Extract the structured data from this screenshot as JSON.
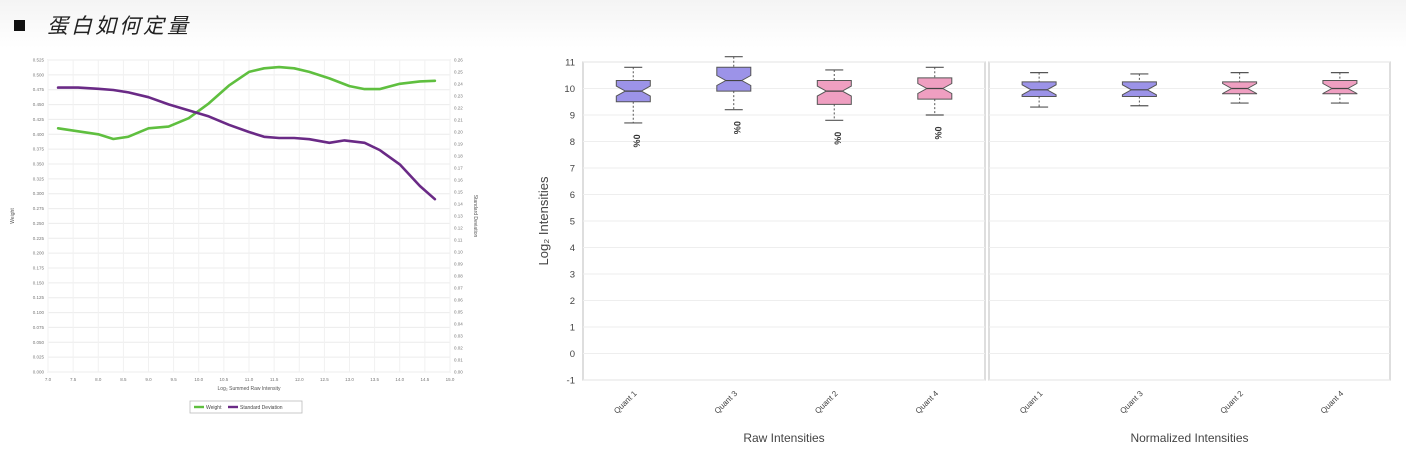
{
  "header": {
    "bullet_icon": "square-bullet-icon",
    "title": "蛋白如何定量"
  },
  "chart_data": [
    {
      "type": "line",
      "title": "",
      "xlabel": "Log₂ Summed Raw Intensity",
      "ylabel": "Weight",
      "y2label": "Standard Deviation",
      "xlim": [
        7.0,
        15.0
      ],
      "xticks": [
        "7.0",
        "7.5",
        "8.0",
        "8.5",
        "9.0",
        "9.5",
        "10.0",
        "10.5",
        "11.0",
        "11.5",
        "12.0",
        "12.5",
        "13.0",
        "13.5",
        "14.0",
        "14.5",
        "15.0"
      ],
      "ylim": [
        0.0,
        0.525
      ],
      "yticks": [
        "0.000",
        "0.025",
        "0.050",
        "0.075",
        "0.100",
        "0.125",
        "0.150",
        "0.175",
        "0.200",
        "0.225",
        "0.250",
        "0.275",
        "0.300",
        "0.325",
        "0.350",
        "0.375",
        "0.400",
        "0.425",
        "0.450",
        "0.475",
        "0.500",
        "0.525"
      ],
      "y2lim": [
        0.0,
        0.26
      ],
      "y2ticks": [
        "0.00",
        "0.01",
        "0.02",
        "0.03",
        "0.04",
        "0.05",
        "0.06",
        "0.07",
        "0.08",
        "0.09",
        "0.10",
        "0.11",
        "0.12",
        "0.13",
        "0.14",
        "0.15",
        "0.16",
        "0.17",
        "0.18",
        "0.19",
        "0.20",
        "0.21",
        "0.22",
        "0.23",
        "0.24",
        "0.25",
        "0.26"
      ],
      "grid": true,
      "legend_position": "bottom",
      "series": [
        {
          "name": "Weight",
          "axis": "left",
          "color": "#5fbf3f",
          "x": [
            7.2,
            7.6,
            8.0,
            8.3,
            8.6,
            9.0,
            9.4,
            9.8,
            10.2,
            10.6,
            11.0,
            11.3,
            11.6,
            11.9,
            12.2,
            12.6,
            13.0,
            13.3,
            13.6,
            14.0,
            14.4,
            14.7
          ],
          "y": [
            0.41,
            0.405,
            0.4,
            0.392,
            0.396,
            0.41,
            0.413,
            0.427,
            0.452,
            0.482,
            0.505,
            0.511,
            0.513,
            0.511,
            0.505,
            0.494,
            0.481,
            0.476,
            0.476,
            0.485,
            0.489,
            0.49
          ]
        },
        {
          "name": "Standard Deviation",
          "axis": "right",
          "color": "#6a2a86",
          "x": [
            7.2,
            7.6,
            8.0,
            8.3,
            8.6,
            9.0,
            9.4,
            9.8,
            10.2,
            10.6,
            11.0,
            11.3,
            11.6,
            11.9,
            12.2,
            12.6,
            12.9,
            13.3,
            13.6,
            14.0,
            14.4,
            14.7
          ],
          "y": [
            0.237,
            0.237,
            0.236,
            0.235,
            0.233,
            0.229,
            0.223,
            0.218,
            0.213,
            0.206,
            0.2,
            0.196,
            0.195,
            0.195,
            0.194,
            0.191,
            0.193,
            0.191,
            0.185,
            0.173,
            0.155,
            0.144
          ]
        }
      ]
    },
    {
      "type": "boxplot",
      "ylabel": "Log₂ Intensities",
      "ylim": [
        -1,
        11
      ],
      "yticks": [
        "-1",
        "0",
        "1",
        "2",
        "3",
        "4",
        "5",
        "6",
        "7",
        "8",
        "9",
        "10",
        "11"
      ],
      "legend_position": "none",
      "panels": [
        {
          "xlabel": "Raw Intensities",
          "boxes": [
            {
              "label": "Quant 1",
              "color": "#9c93e8",
              "min": 8.7,
              "q1": 9.5,
              "median": 9.9,
              "q3": 10.3,
              "max": 10.8,
              "annotation": "0%"
            },
            {
              "label": "Quant 3",
              "color": "#9c93e8",
              "min": 9.2,
              "q1": 9.9,
              "median": 10.3,
              "q3": 10.8,
              "max": 11.2,
              "annotation": "0%"
            },
            {
              "label": "Quant 2",
              "color": "#ef9fc1",
              "min": 8.8,
              "q1": 9.4,
              "median": 9.9,
              "q3": 10.3,
              "max": 10.7,
              "annotation": "0%"
            },
            {
              "label": "Quant 4",
              "color": "#ef9fc1",
              "min": 9.0,
              "q1": 9.6,
              "median": 10.0,
              "q3": 10.4,
              "max": 10.8,
              "annotation": "0%"
            }
          ]
        },
        {
          "xlabel": "Normalized Intensities",
          "boxes": [
            {
              "label": "Quant 1",
              "color": "#9c93e8",
              "min": 9.3,
              "q1": 9.7,
              "median": 9.95,
              "q3": 10.25,
              "max": 10.6
            },
            {
              "label": "Quant 3",
              "color": "#9c93e8",
              "min": 9.35,
              "q1": 9.7,
              "median": 9.95,
              "q3": 10.25,
              "max": 10.55
            },
            {
              "label": "Quant 2",
              "color": "#ef9fc1",
              "min": 9.45,
              "q1": 9.8,
              "median": 10.0,
              "q3": 10.25,
              "max": 10.6
            },
            {
              "label": "Quant 4",
              "color": "#ef9fc1",
              "min": 9.45,
              "q1": 9.8,
              "median": 10.0,
              "q3": 10.3,
              "max": 10.6
            }
          ]
        }
      ]
    }
  ]
}
